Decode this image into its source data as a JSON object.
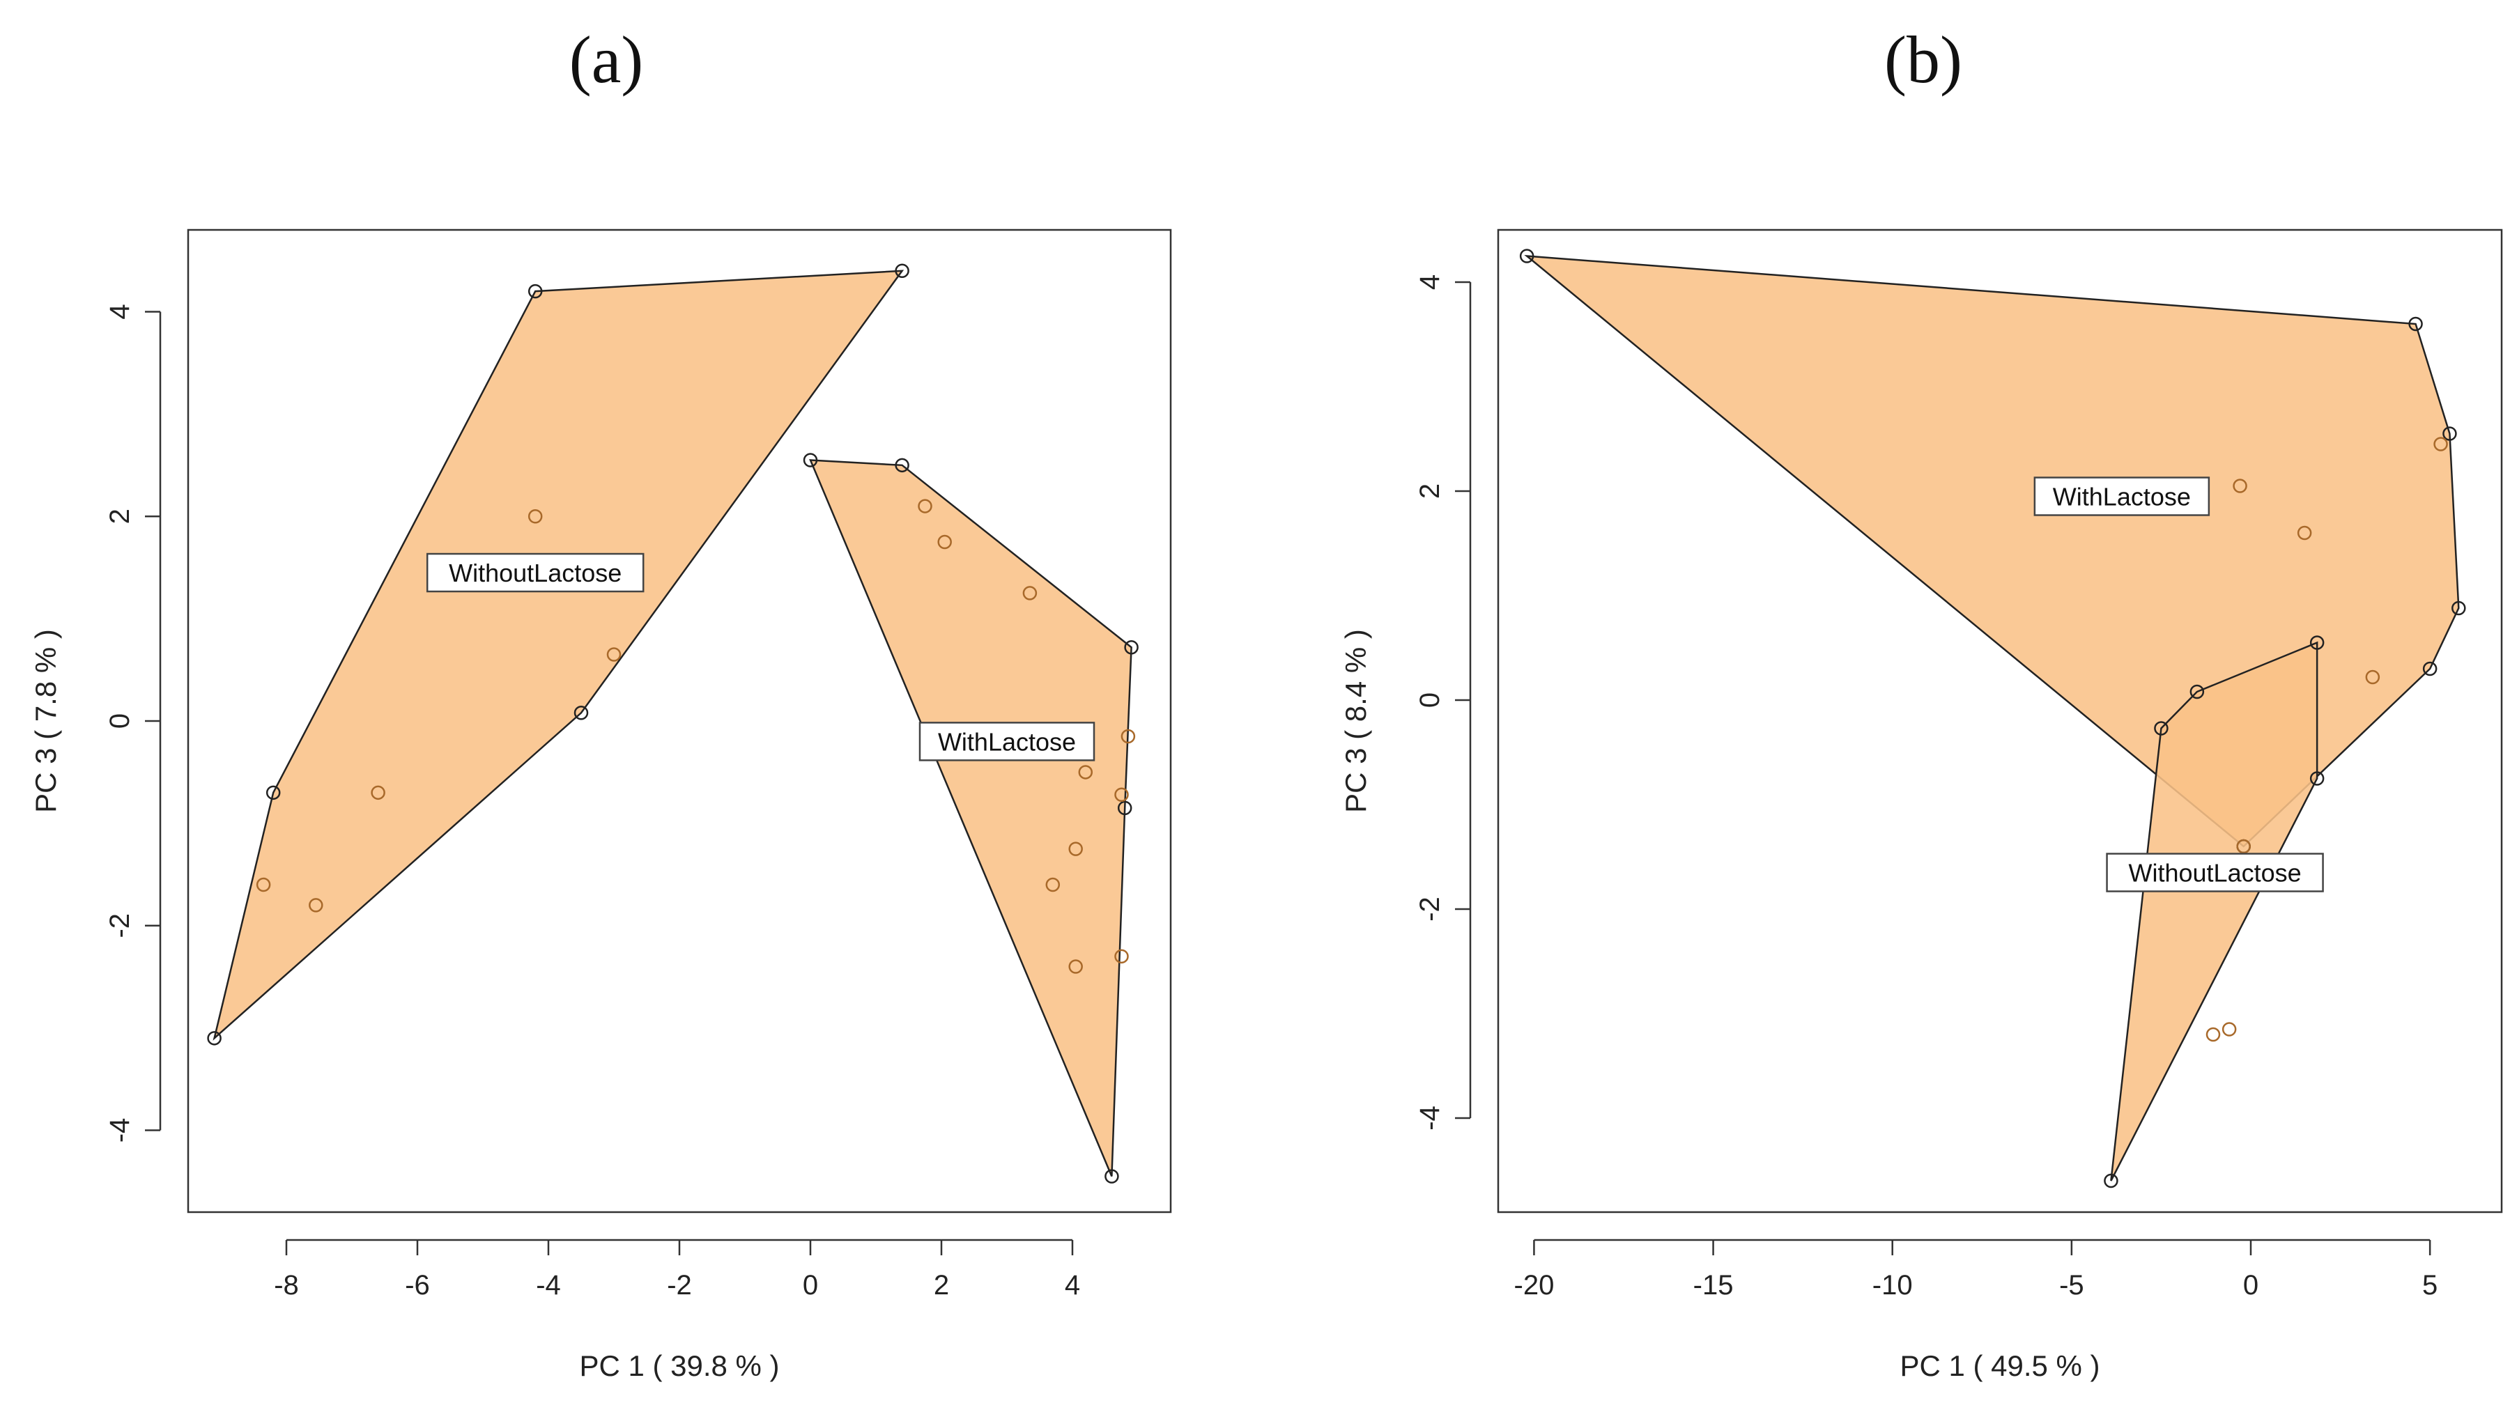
{
  "panels": {
    "a": {
      "letter": "(a)"
    },
    "b": {
      "letter": "(b)"
    }
  },
  "chart_data": [
    {
      "type": "scatter",
      "id": "a",
      "title": "(a)",
      "xlabel": "PC 1 ( 39.8 % )",
      "ylabel": "PC 3 ( 7.8 % )",
      "xlim": [
        -9.5,
        5.5
      ],
      "ylim": [
        -4.8,
        4.8
      ],
      "xticks": [
        -8,
        -6,
        -4,
        -2,
        0,
        2,
        4
      ],
      "yticks": [
        -4,
        -2,
        0,
        2,
        4
      ],
      "groups": [
        {
          "name": "WithoutLactose",
          "label_pos": [
            -4.2,
            1.45
          ],
          "hull": [
            [
              -9.1,
              -3.1
            ],
            [
              -8.2,
              -0.7
            ],
            [
              -4.2,
              4.2
            ],
            [
              1.4,
              4.4
            ],
            [
              -3.5,
              0.08
            ]
          ],
          "points": [
            [
              -8.35,
              -1.6
            ],
            [
              -7.55,
              -1.8
            ],
            [
              -6.6,
              -0.7
            ],
            [
              -4.2,
              2.0
            ],
            [
              -3.0,
              0.65
            ]
          ]
        },
        {
          "name": "WithLactose",
          "label_pos": [
            3.0,
            -0.2
          ],
          "hull": [
            [
              0.0,
              2.55
            ],
            [
              1.4,
              2.5
            ],
            [
              4.9,
              0.72
            ],
            [
              4.8,
              -0.85
            ],
            [
              4.6,
              -4.45
            ]
          ],
          "points": [
            [
              1.75,
              2.1
            ],
            [
              2.05,
              1.75
            ],
            [
              3.35,
              1.25
            ],
            [
              4.2,
              -0.5
            ],
            [
              4.85,
              -0.15
            ],
            [
              4.75,
              -0.72
            ],
            [
              4.05,
              -1.25
            ],
            [
              3.7,
              -1.6
            ],
            [
              4.75,
              -2.3
            ],
            [
              4.05,
              -2.4
            ]
          ]
        }
      ]
    },
    {
      "type": "scatter",
      "id": "b",
      "title": "(b)",
      "xlabel": "PC 1 ( 49.5 % )",
      "ylabel": "PC 3 ( 8.4 % )",
      "xlim": [
        -21,
        7
      ],
      "ylim": [
        -4.9,
        4.5
      ],
      "xticks": [
        -20,
        -15,
        -10,
        -5,
        0,
        5
      ],
      "yticks": [
        -4,
        -2,
        0,
        2,
        4
      ],
      "groups": [
        {
          "name": "WithLactose",
          "label_pos": [
            -3.6,
            1.95
          ],
          "hull": [
            [
              -20.2,
              4.25
            ],
            [
              4.6,
              3.6
            ],
            [
              5.55,
              2.55
            ],
            [
              5.8,
              0.88
            ],
            [
              5.0,
              0.3
            ],
            [
              -0.2,
              -1.4
            ]
          ],
          "points": [
            [
              -0.3,
              2.05
            ],
            [
              1.5,
              1.6
            ],
            [
              5.3,
              2.45
            ],
            [
              3.4,
              0.22
            ]
          ]
        },
        {
          "name": "WithoutLactose",
          "label_pos": [
            -1.0,
            -1.65
          ],
          "hull": [
            [
              -3.9,
              -4.6
            ],
            [
              -2.5,
              -0.27
            ],
            [
              -1.5,
              0.08
            ],
            [
              1.85,
              0.55
            ],
            [
              1.85,
              -0.75
            ]
          ],
          "points": [
            [
              -0.6,
              -3.15
            ],
            [
              -1.05,
              -3.2
            ],
            [
              -0.2,
              -1.4
            ]
          ]
        }
      ]
    }
  ]
}
